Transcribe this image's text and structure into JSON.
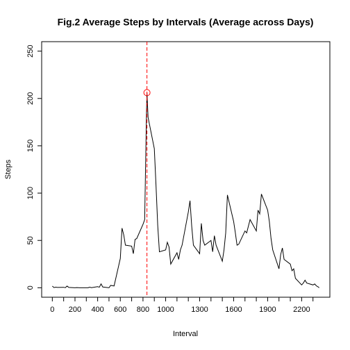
{
  "chart_data": {
    "type": "line",
    "title": "Fig.2 Average Steps by Intervals (Average across Days)",
    "x_label": "Interval",
    "y_label": "Steps",
    "x": [
      0,
      15,
      30,
      45,
      100,
      115,
      130,
      145,
      200,
      215,
      230,
      245,
      300,
      315,
      330,
      345,
      400,
      415,
      430,
      445,
      500,
      515,
      530,
      545,
      600,
      615,
      630,
      645,
      700,
      715,
      730,
      745,
      800,
      815,
      830,
      835,
      845,
      900,
      915,
      930,
      945,
      1000,
      1015,
      1030,
      1045,
      1100,
      1115,
      1130,
      1145,
      1200,
      1215,
      1230,
      1245,
      1300,
      1315,
      1330,
      1345,
      1400,
      1415,
      1430,
      1445,
      1500,
      1515,
      1530,
      1545,
      1600,
      1615,
      1630,
      1645,
      1700,
      1715,
      1730,
      1745,
      1800,
      1815,
      1830,
      1845,
      1900,
      1915,
      1930,
      1945,
      2000,
      2015,
      2030,
      2045,
      2100,
      2115,
      2130,
      2145,
      2200,
      2215,
      2230,
      2245,
      2300,
      2315,
      2330,
      2345,
      2355
    ],
    "series": [
      {
        "name": "Steps",
        "color": "#000000",
        "values": [
          1.7,
          0.2,
          0.6,
          0.4,
          0.5,
          0.1,
          1.8,
          0.4,
          0,
          0.2,
          0.1,
          0,
          0,
          0,
          0.6,
          0.1,
          1.2,
          0.6,
          4.1,
          0.8,
          0,
          2.5,
          2.2,
          1.9,
          31,
          63,
          56,
          45,
          44,
          36,
          51,
          52,
          67,
          72,
          178,
          206.17,
          180,
          147,
          108,
          66,
          38,
          40,
          48,
          43,
          25,
          37,
          30,
          40,
          45,
          80,
          92,
          65,
          45,
          36,
          68,
          50,
          45,
          50,
          38,
          55,
          45,
          28,
          40,
          58,
          98,
          70,
          58,
          45,
          46,
          60,
          58,
          65,
          72,
          60,
          82,
          78,
          99,
          82,
          70,
          52,
          40,
          20,
          35,
          42,
          30,
          25,
          18,
          20,
          10,
          3,
          5,
          8,
          5,
          3,
          4,
          2,
          1,
          0
        ]
      }
    ],
    "max_interval": 835,
    "max_steps": 206.17,
    "marker_color": "#ff0000",
    "xlim": [
      -94,
      2449
    ],
    "ylim": [
      -10,
      260
    ],
    "xticks": [
      0,
      200,
      400,
      600,
      800,
      1000,
      1300,
      1600,
      1900,
      2200
    ],
    "xminor_ticks": [
      100,
      300,
      500,
      700,
      900,
      1100,
      1200,
      1400,
      1500,
      1700,
      1800,
      2000,
      2100,
      2300
    ],
    "yticks": [
      0,
      50,
      100,
      150,
      200,
      250
    ]
  }
}
